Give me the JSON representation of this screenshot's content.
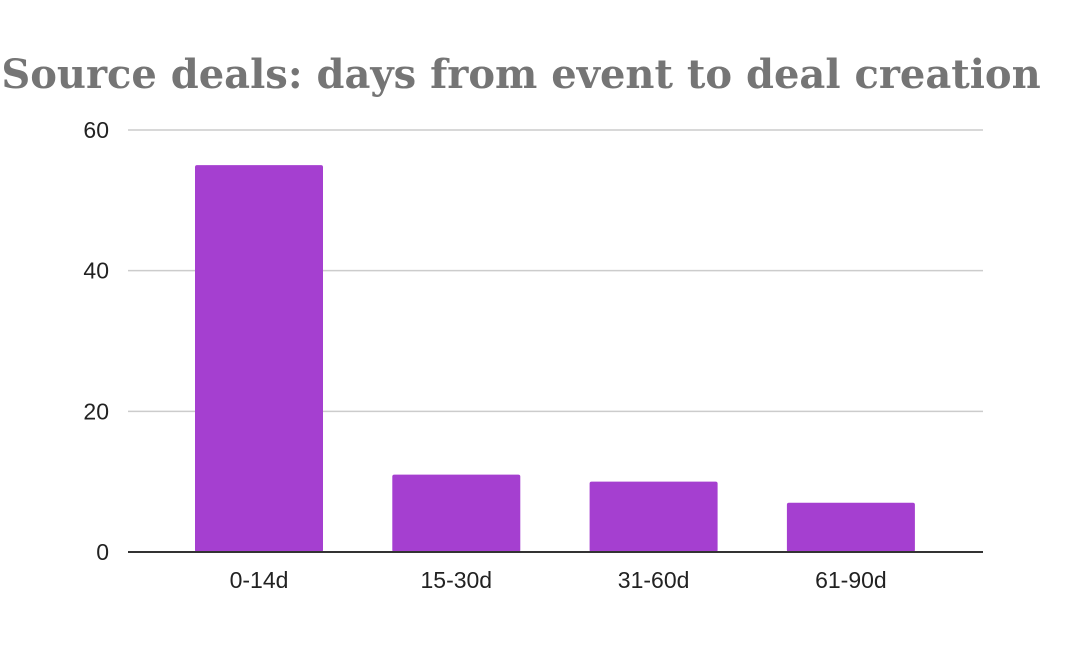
{
  "chart_data": {
    "type": "bar",
    "title": "Source deals: days from event to deal creation",
    "xlabel": "",
    "ylabel": "",
    "categories": [
      "0-14d",
      "15-30d",
      "31-60d",
      "61-90d"
    ],
    "values": [
      55,
      11,
      10,
      7
    ],
    "ylim": [
      0,
      60
    ],
    "yticks": [
      0,
      20,
      40,
      60
    ],
    "grid": true,
    "legend": "none",
    "bar_color": "#a53fd0"
  }
}
